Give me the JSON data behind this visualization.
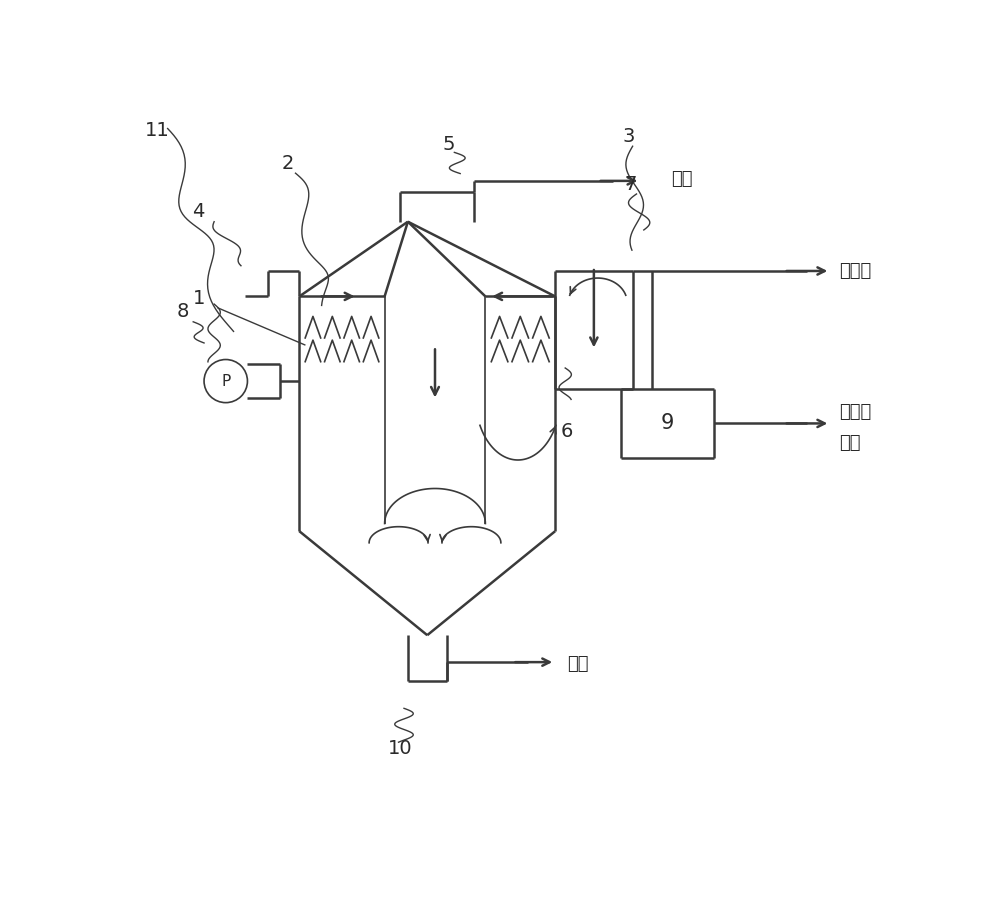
{
  "background_color": "#ffffff",
  "line_color": "#3a3a3a",
  "text_color": "#2a2a2a",
  "lw_main": 1.8,
  "lw_thin": 1.2,
  "labels": {
    "biogas": "沼气",
    "water_treatment": "水处理",
    "compost_line1": "堆肥或",
    "compost_line2": "热解",
    "sand_discharge": "排沙"
  }
}
